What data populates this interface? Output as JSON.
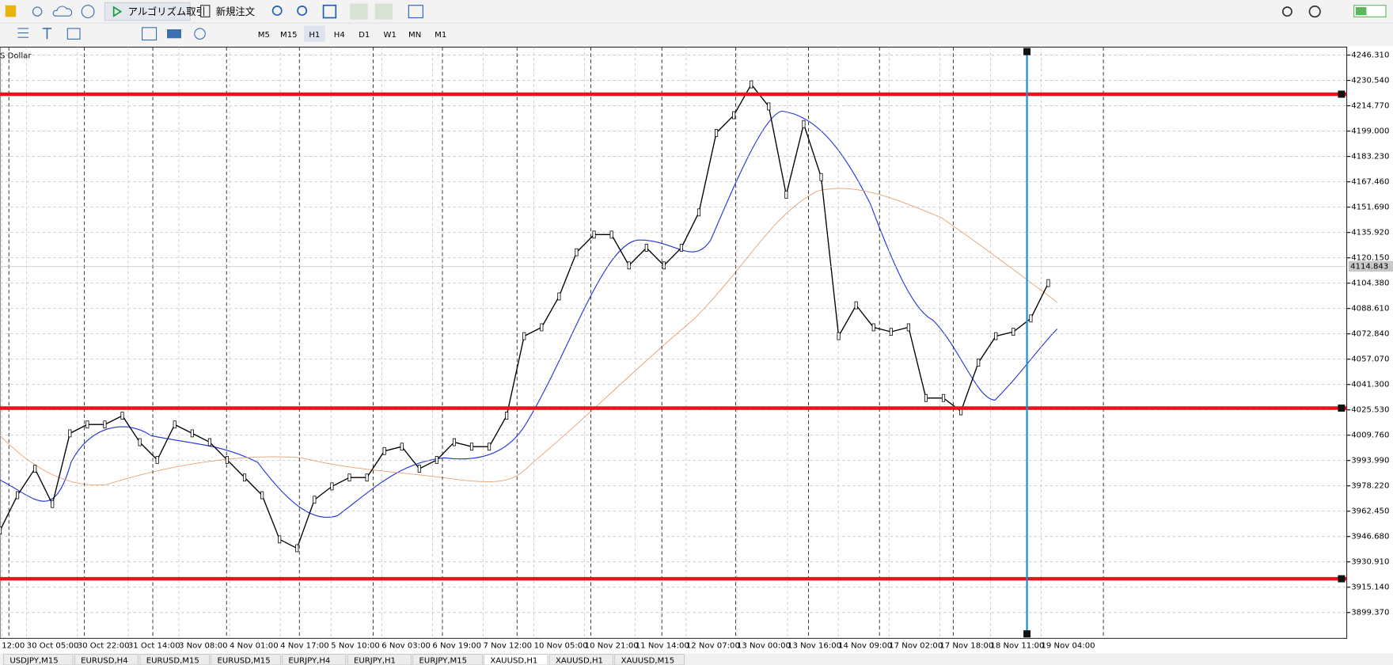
{
  "toolbar": {
    "algo_trading": "アルゴリズム取引",
    "new_order": "新規注文",
    "timeframes": [
      "M5",
      "M15",
      "H1",
      "H4",
      "D1",
      "W1",
      "MN",
      "M1"
    ],
    "active_timeframe": "H1"
  },
  "chart": {
    "symbol_label": "S Dollar",
    "price_ticks": [
      {
        "value": 4246.31,
        "label": "4246.310"
      },
      {
        "value": 4230.54,
        "label": "4230.540"
      },
      {
        "value": 4214.77,
        "label": "4214.770"
      },
      {
        "value": 4199.0,
        "label": "4199.000"
      },
      {
        "value": 4183.23,
        "label": "4183.230"
      },
      {
        "value": 4167.46,
        "label": "4167.460"
      },
      {
        "value": 4151.69,
        "label": "4151.690"
      },
      {
        "value": 4135.92,
        "label": "4135.920"
      },
      {
        "value": 4120.15,
        "label": "4120.150"
      },
      {
        "value": 4104.38,
        "label": "4104.380"
      },
      {
        "value": 4088.61,
        "label": "4088.610"
      },
      {
        "value": 4072.84,
        "label": "4072.840"
      },
      {
        "value": 4057.07,
        "label": "4057.070"
      },
      {
        "value": 4041.3,
        "label": "4041.300"
      },
      {
        "value": 4025.53,
        "label": "4025.530"
      },
      {
        "value": 4009.76,
        "label": "4009.760"
      },
      {
        "value": 3993.99,
        "label": "3993.990"
      },
      {
        "value": 3978.22,
        "label": "3978.220"
      },
      {
        "value": 3962.45,
        "label": "3962.450"
      },
      {
        "value": 3946.68,
        "label": "3946.680"
      },
      {
        "value": 3930.91,
        "label": "3930.910"
      },
      {
        "value": 3915.14,
        "label": "3915.140"
      },
      {
        "value": 3899.37,
        "label": "3899.370"
      }
    ],
    "current_price": {
      "value": 4114.843,
      "label": "4114.843"
    },
    "time_labels": [
      "12:00",
      "30 Oct 05:00",
      "30 Oct 22:00",
      "31 Oct 14:00",
      "3 Nov 08:00",
      "4 Nov 01:00",
      "4 Nov 17:00",
      "5 Nov 10:00",
      "6 Nov 03:00",
      "6 Nov 19:00",
      "7 Nov 12:00",
      "10 Nov 05:00",
      "10 Nov 21:00",
      "11 Nov 14:00",
      "12 Nov 07:00",
      "13 Nov 00:00",
      "13 Nov 16:00",
      "14 Nov 09:00",
      "17 Nov 02:00",
      "17 Nov 18:00",
      "18 Nov 11:00",
      "19 Nov 04:00"
    ],
    "levels": [
      4222.0,
      4026.6,
      3920.4
    ],
    "closes": [
      3950.4,
      3972.4,
      3988.9,
      3966.9,
      4010.9,
      4016.4,
      4016.4,
      4021.9,
      4005.4,
      3994.4,
      4016.4,
      4010.9,
      4005.4,
      3994.4,
      3983.4,
      3972.4,
      3944.9,
      3939.4,
      3969.6,
      3977.9,
      3983.4,
      3983.4,
      3999.9,
      4002.6,
      3988.9,
      3994.4,
      4005.4,
      4002.6,
      4002.6,
      4021.9,
      4071.4,
      4076.9,
      4096.1,
      4123.6,
      4134.6,
      4134.6,
      4115.4,
      4126.4,
      4115.4,
      4126.4,
      4148.4,
      4197.9,
      4208.9,
      4228.1,
      4214.4,
      4159.4,
      4203.4,
      4170.4,
      4071.4,
      4090.6,
      4076.9,
      4074.1,
      4076.9,
      4032.9,
      4032.9,
      4024.6,
      4054.9,
      4071.4,
      4074.1,
      4082.4,
      4104.4
    ]
  },
  "tabs": [
    "USDJPY,M15",
    "EURUSD,H4",
    "EURUSD,M15",
    "EURUSD,M15",
    "EURJPY,H4",
    "EURJPY,H1",
    "EURJPY,M15",
    "XAUUSD,H1",
    "XAUUSD,H1",
    "XAUUSD,M15"
  ],
  "active_tab": 7
}
